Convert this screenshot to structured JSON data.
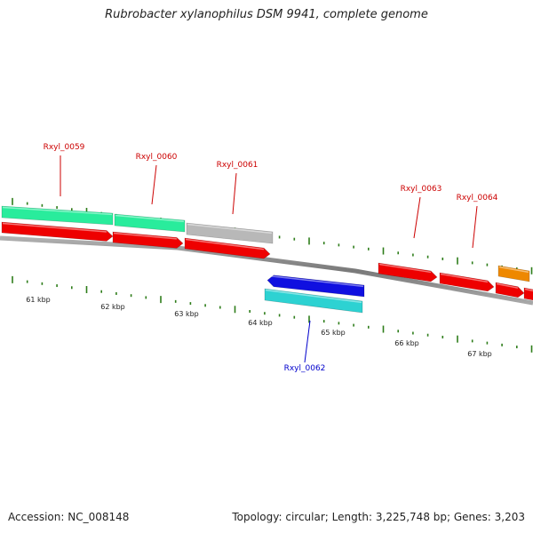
{
  "header": {
    "title": "Rubrobacter xylanophilus DSM 9941, complete genome"
  },
  "footer": {
    "accession": "Accession: NC_008148",
    "summary": "Topology: circular; Length: 3,225,748 bp; Genes: 3,203"
  },
  "colors": {
    "backbone": "#8a8a8a",
    "ticks": "#2e7d1a",
    "cds_red": "#ee0000",
    "cds_green": "#29ec9c",
    "cds_gray": "#b8b8b8",
    "cds_blue": "#1010e0",
    "cds_cyan": "#2dd2d2",
    "cds_orange": "#ee8800",
    "label_red": "#cc0000",
    "label_blue": "#0000cc"
  },
  "kbp_labels": [
    "61 kbp",
    "62 kbp",
    "63 kbp",
    "64 kbp",
    "65 kbp",
    "66 kbp",
    "67 kbp"
  ],
  "gene_labels": [
    {
      "id": "label-rxyl-0059",
      "text": "Rxyl_0059",
      "color": "red"
    },
    {
      "id": "label-rxyl-0060",
      "text": "Rxyl_0060",
      "color": "red"
    },
    {
      "id": "label-rxyl-0061",
      "text": "Rxyl_0061",
      "color": "red"
    },
    {
      "id": "label-rxyl-0062",
      "text": "Rxyl_0062",
      "color": "blue"
    },
    {
      "id": "label-rxyl-0063",
      "text": "Rxyl_0063",
      "color": "red"
    },
    {
      "id": "label-rxyl-0064",
      "text": "Rxyl_0064",
      "color": "red"
    }
  ]
}
